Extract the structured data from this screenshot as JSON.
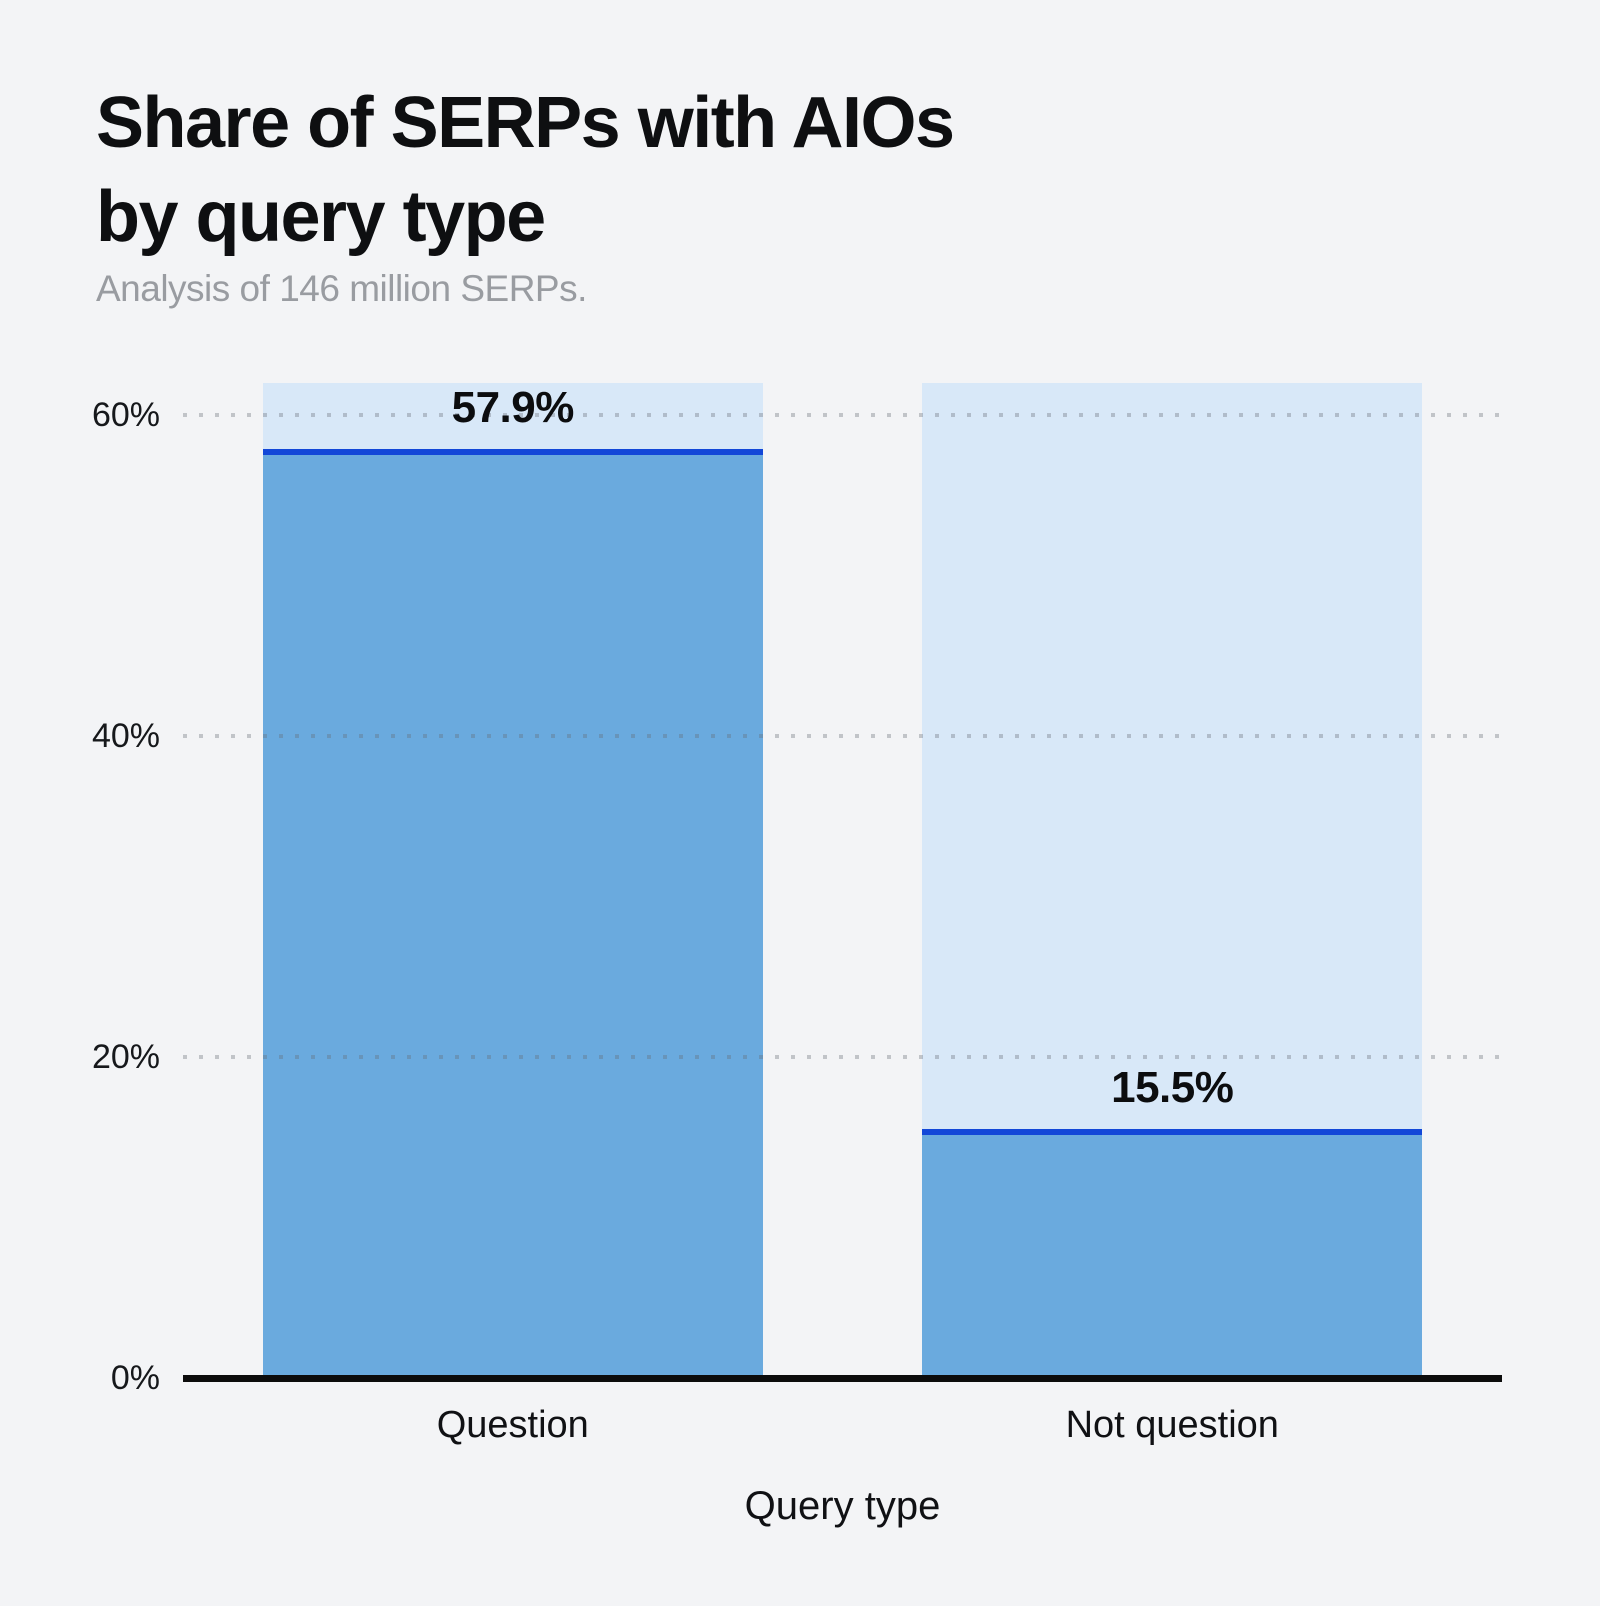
{
  "header": {
    "title_line1": "Share of SERPs with AIOs",
    "title_line2": "by query type",
    "subtitle": "Analysis of 146 million SERPs."
  },
  "chart_data": {
    "type": "bar",
    "title": "Share of SERPs with AIOs by query type",
    "subtitle": "Analysis of 146 million SERPs.",
    "categories": [
      "Question",
      "Not question"
    ],
    "values": [
      57.9,
      15.5
    ],
    "value_labels": [
      "57.9%",
      "15.5%"
    ],
    "xlabel": "Query type",
    "ylabel": "",
    "ylim": [
      0,
      62
    ],
    "yticks": [
      0,
      20,
      40,
      60
    ],
    "ytick_labels": [
      "0%",
      "20%",
      "40%",
      "60%"
    ],
    "grid": "dotted-horizontal",
    "legend": "none",
    "colors": {
      "background": "#f3f4f6",
      "column_background": "#d8e8f8",
      "bar_fill": "#6aaade",
      "bar_top_line": "#1247d8",
      "axis_line": "#0c0c0c",
      "gridline_dot": "rgba(100,106,115,0.35)",
      "title_text": "#0e0f11",
      "subtitle_text": "#999ca1"
    }
  }
}
